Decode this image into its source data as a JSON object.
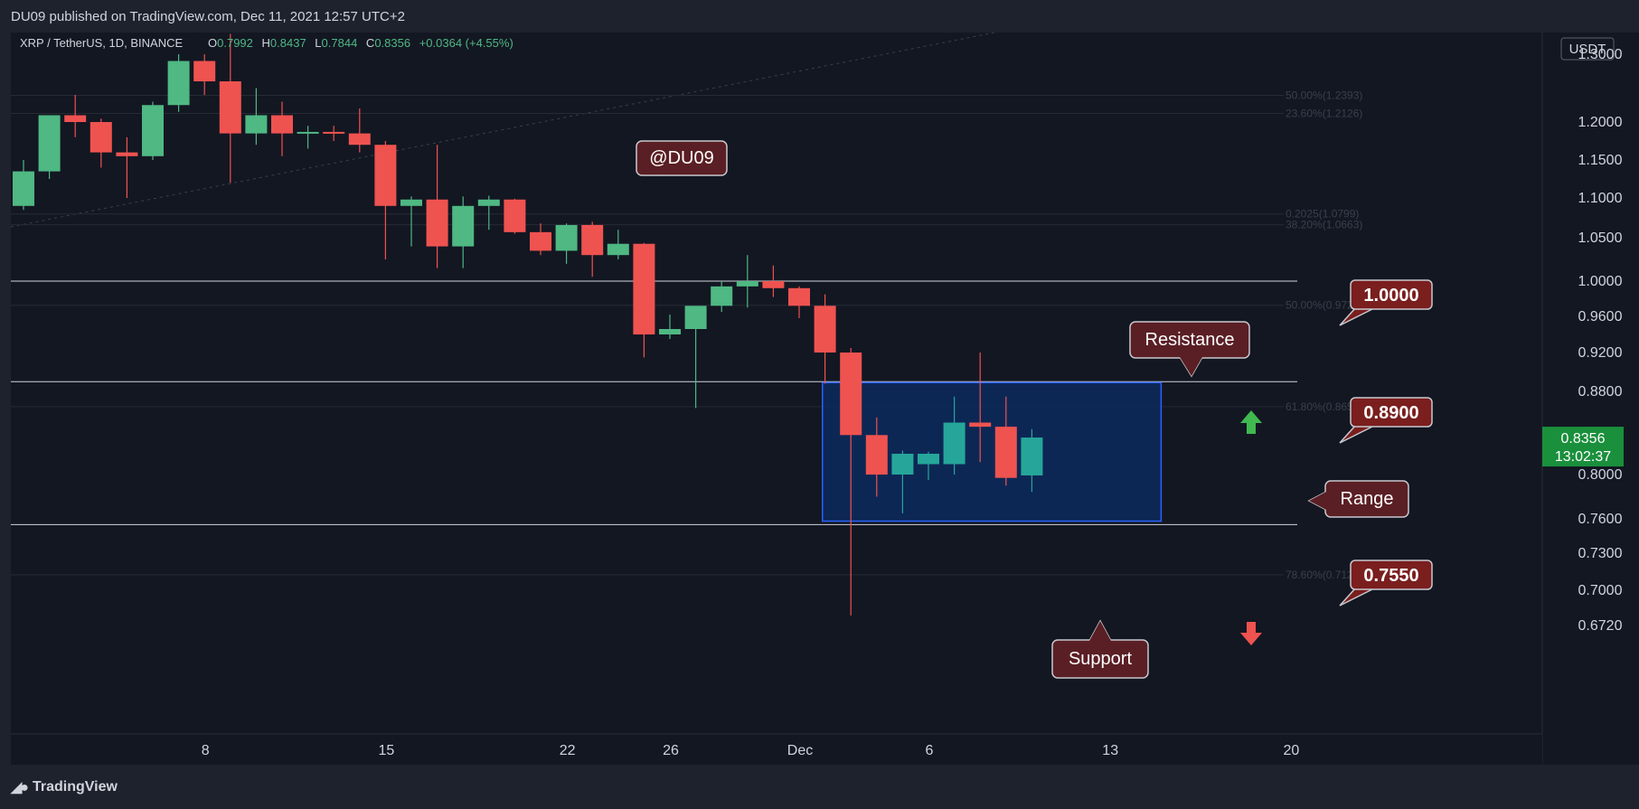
{
  "header": {
    "published": "DU09 published on TradingView.com, Dec 11, 2021 12:57 UTC+2"
  },
  "legend": {
    "symbol": "XRP / TetherUS, 1D, BINANCE",
    "open_label": "O",
    "open": "0.7992",
    "high_label": "H",
    "high": "0.8437",
    "low_label": "L",
    "low": "0.7844",
    "close_label": "C",
    "close": "0.8356",
    "change": "+0.0364 (+4.55%)"
  },
  "footer": {
    "brand": "TradingView"
  },
  "colors": {
    "background": "#131722",
    "up": "#26a69a",
    "up_light": "#4fb883",
    "down": "#ef5350",
    "grid": "#2a2e39",
    "text": "#d1d4dc",
    "range_fill": "#0d2a5e",
    "range_border": "#2962ff",
    "label_bg": "#5a1f1f",
    "price_badge": "#1a8f3c"
  },
  "chart_data": {
    "type": "candlestick",
    "currency": "USDT",
    "current_price": "0.8356",
    "countdown": "13:02:37",
    "y_ticks": [
      "1.3000",
      "1.2000",
      "1.1500",
      "1.1000",
      "1.0500",
      "1.0000",
      "0.9600",
      "0.9200",
      "0.8800",
      "0.8000",
      "0.7600",
      "0.7300",
      "0.7000",
      "0.6720"
    ],
    "x_ticks": [
      {
        "label": "8",
        "day": 8
      },
      {
        "label": "15",
        "day": 15
      },
      {
        "label": "22",
        "day": 22
      },
      {
        "label": "26",
        "day": 26
      },
      {
        "label": "Dec",
        "day": 31
      },
      {
        "label": "6",
        "day": 36
      },
      {
        "label": "13",
        "day": 43
      },
      {
        "label": "20",
        "day": 50
      }
    ],
    "candles": [
      {
        "day": 1,
        "o": 1.09,
        "h": 1.15,
        "l": 1.085,
        "c": 1.135
      },
      {
        "day": 2,
        "o": 1.135,
        "h": 1.21,
        "l": 1.125,
        "c": 1.21
      },
      {
        "day": 3,
        "o": 1.21,
        "h": 1.24,
        "l": 1.18,
        "c": 1.2
      },
      {
        "day": 4,
        "o": 1.2,
        "h": 1.205,
        "l": 1.14,
        "c": 1.16
      },
      {
        "day": 5,
        "o": 1.16,
        "h": 1.18,
        "l": 1.1,
        "c": 1.155
      },
      {
        "day": 6,
        "o": 1.155,
        "h": 1.23,
        "l": 1.15,
        "c": 1.225
      },
      {
        "day": 7,
        "o": 1.225,
        "h": 1.3,
        "l": 1.215,
        "c": 1.29
      },
      {
        "day": 8,
        "o": 1.29,
        "h": 1.3,
        "l": 1.24,
        "c": 1.26
      },
      {
        "day": 9,
        "o": 1.26,
        "h": 1.33,
        "l": 1.12,
        "c": 1.185
      },
      {
        "day": 10,
        "o": 1.185,
        "h": 1.25,
        "l": 1.17,
        "c": 1.21
      },
      {
        "day": 11,
        "o": 1.21,
        "h": 1.23,
        "l": 1.155,
        "c": 1.185
      },
      {
        "day": 12,
        "o": 1.185,
        "h": 1.195,
        "l": 1.165,
        "c": 1.187
      },
      {
        "day": 13,
        "o": 1.187,
        "h": 1.195,
        "l": 1.175,
        "c": 1.185
      },
      {
        "day": 14,
        "o": 1.185,
        "h": 1.22,
        "l": 1.16,
        "c": 1.17
      },
      {
        "day": 15,
        "o": 1.17,
        "h": 1.175,
        "l": 1.025,
        "c": 1.09
      },
      {
        "day": 16,
        "o": 1.09,
        "h": 1.102,
        "l": 1.04,
        "c": 1.098
      },
      {
        "day": 17,
        "o": 1.098,
        "h": 1.17,
        "l": 1.015,
        "c": 1.04
      },
      {
        "day": 18,
        "o": 1.04,
        "h": 1.102,
        "l": 1.015,
        "c": 1.09
      },
      {
        "day": 19,
        "o": 1.09,
        "h": 1.103,
        "l": 1.06,
        "c": 1.098
      },
      {
        "day": 20,
        "o": 1.098,
        "h": 1.099,
        "l": 1.055,
        "c": 1.057
      },
      {
        "day": 21,
        "o": 1.057,
        "h": 1.068,
        "l": 1.03,
        "c": 1.035
      },
      {
        "day": 22,
        "o": 1.035,
        "h": 1.068,
        "l": 1.02,
        "c": 1.066
      },
      {
        "day": 23,
        "o": 1.066,
        "h": 1.07,
        "l": 1.005,
        "c": 1.03
      },
      {
        "day": 24,
        "o": 1.03,
        "h": 1.06,
        "l": 1.025,
        "c": 1.043
      },
      {
        "day": 25,
        "o": 1.043,
        "h": 1.044,
        "l": 0.915,
        "c": 0.94
      },
      {
        "day": 26,
        "o": 0.94,
        "h": 0.962,
        "l": 0.935,
        "c": 0.946
      },
      {
        "day": 27,
        "o": 0.946,
        "h": 0.972,
        "l": 0.864,
        "c": 0.972
      },
      {
        "day": 28,
        "o": 0.972,
        "h": 1.0,
        "l": 0.965,
        "c": 0.994
      },
      {
        "day": 29,
        "o": 0.994,
        "h": 1.03,
        "l": 0.97,
        "c": 1.0
      },
      {
        "day": 30,
        "o": 1.0,
        "h": 1.018,
        "l": 0.982,
        "c": 0.992
      },
      {
        "day": 31,
        "o": 0.992,
        "h": 0.994,
        "l": 0.958,
        "c": 0.972
      },
      {
        "day": 32,
        "o": 0.972,
        "h": 0.985,
        "l": 0.888,
        "c": 0.92
      },
      {
        "day": 33,
        "o": 0.92,
        "h": 0.925,
        "l": 0.68,
        "c": 0.838
      },
      {
        "day": 34,
        "o": 0.838,
        "h": 0.855,
        "l": 0.78,
        "c": 0.8
      },
      {
        "day": 35,
        "o": 0.8,
        "h": 0.823,
        "l": 0.765,
        "c": 0.82
      },
      {
        "day": 36,
        "o": 0.81,
        "h": 0.822,
        "l": 0.795,
        "c": 0.82
      },
      {
        "day": 37,
        "o": 0.81,
        "h": 0.875,
        "l": 0.8,
        "c": 0.85
      },
      {
        "day": 38,
        "o": 0.85,
        "h": 0.92,
        "l": 0.812,
        "c": 0.846
      },
      {
        "day": 39,
        "o": 0.846,
        "h": 0.875,
        "l": 0.79,
        "c": 0.797
      },
      {
        "day": 40,
        "o": 0.7992,
        "h": 0.8437,
        "l": 0.7844,
        "c": 0.8356
      }
    ],
    "horizontal_lines": [
      1.0,
      0.89,
      0.755
    ],
    "fib_levels": [
      {
        "label": "50.00%(1.2393)",
        "value": 1.2393
      },
      {
        "label": "23.60%(1.2126)",
        "value": 1.2126
      },
      {
        "label": "0.2025(1.0799)",
        "value": 1.0799
      },
      {
        "label": "38.20%(1.0663)",
        "value": 1.0663
      },
      {
        "label": "50.00%(0.9726)",
        "value": 0.9726
      },
      {
        "label": "61.80%(0.8653)",
        "value": 0.8653
      },
      {
        "label": "78.60%(0.7125)",
        "value": 0.7125
      }
    ],
    "range_box": {
      "day_start": 31.9,
      "day_end": 45,
      "top": 0.889,
      "bottom": 0.758
    },
    "annotations": {
      "watermark": "@DU09",
      "resistance": "Resistance",
      "range": "Range",
      "support": "Support",
      "level_1": "1.0000",
      "level_2": "0.8900",
      "level_3": "0.7550"
    }
  }
}
